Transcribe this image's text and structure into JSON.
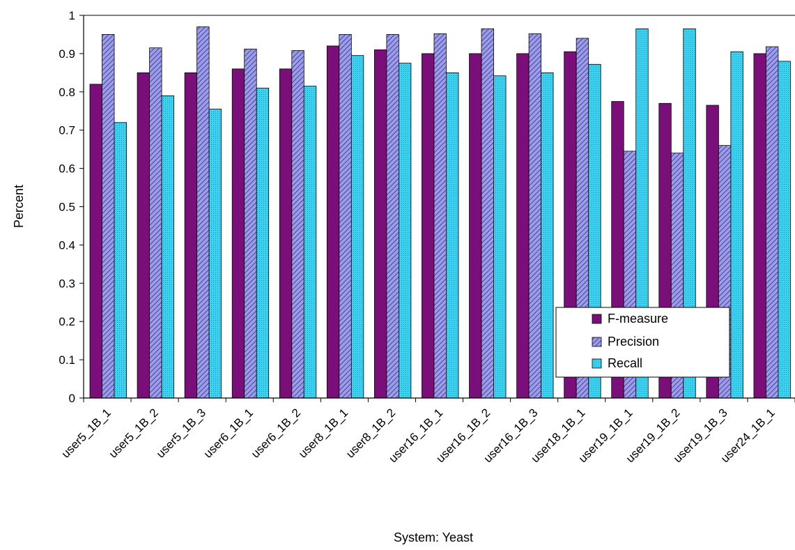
{
  "chart_data": {
    "type": "bar",
    "xlabel": "System: Yeast",
    "ylabel": "Percent",
    "ylim": [
      0,
      1
    ],
    "yticks": [
      0,
      0.1,
      0.2,
      0.3,
      0.4,
      0.5,
      0.6,
      0.7,
      0.8,
      0.9,
      1
    ],
    "ytick_labels": [
      "0",
      "0.1",
      "0.2",
      "0.3",
      "0.4",
      "0.5",
      "0.6",
      "0.7",
      "0.8",
      "0.9",
      "1"
    ],
    "grid": "horizontal-at-top-only",
    "legend_position": "bottom-right",
    "categories": [
      "user5_1B_1",
      "user5_1B_2",
      "user5_1B_3",
      "user6_1B_1",
      "user6_1B_2",
      "user8_1B_1",
      "user8_1B_2",
      "user16_1B_1",
      "user16_1B_2",
      "user16_1B_3",
      "user18_1B_1",
      "user19_1B_1",
      "user19_1B_2",
      "user19_1B_3",
      "user24_1B_1"
    ],
    "series": [
      {
        "name": "F-measure",
        "color": "#7a0f7a",
        "pattern": "solid",
        "values": [
          0.82,
          0.85,
          0.85,
          0.86,
          0.86,
          0.92,
          0.91,
          0.9,
          0.9,
          0.9,
          0.905,
          0.775,
          0.77,
          0.765,
          0.9
        ]
      },
      {
        "name": "Precision",
        "color": "#8f8fe0",
        "pattern": "diagonal-hatch",
        "values": [
          0.95,
          0.915,
          0.97,
          0.912,
          0.908,
          0.95,
          0.95,
          0.952,
          0.965,
          0.952,
          0.94,
          0.645,
          0.64,
          0.66,
          0.918
        ]
      },
      {
        "name": "Recall",
        "color": "#33ccee",
        "pattern": "dotted",
        "values": [
          0.72,
          0.79,
          0.755,
          0.81,
          0.815,
          0.895,
          0.875,
          0.85,
          0.842,
          0.85,
          0.872,
          0.965,
          0.965,
          0.905,
          0.88
        ]
      }
    ]
  }
}
